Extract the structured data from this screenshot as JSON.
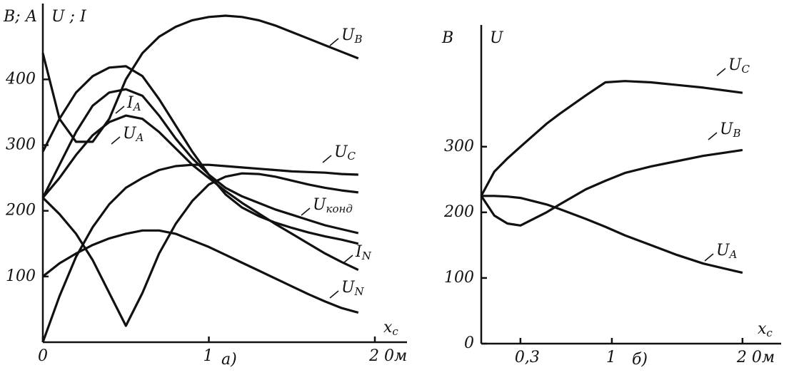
{
  "chart_data": [
    {
      "type": "line",
      "label": "а)",
      "y_label": "В; А",
      "y_label2": "U ; I",
      "x_label": "xc",
      "color": "#111",
      "x": [
        0,
        0.1,
        0.2,
        0.3,
        0.4,
        0.5,
        0.6,
        0.7,
        0.8,
        0.9,
        1.0,
        1.1,
        1.2,
        1.3,
        1.4,
        1.5,
        1.6,
        1.7,
        1.8,
        1.9
      ],
      "xlim": [
        0,
        2
      ],
      "ylim": [
        0,
        510
      ],
      "xticks": [
        0,
        1,
        {
          "value": 2,
          "label": "2 0м"
        }
      ],
      "yticks": [
        100,
        200,
        300,
        400
      ],
      "series": [
        {
          "name": "UB",
          "values": [
            440,
            340,
            305,
            305,
            340,
            400,
            440,
            465,
            480,
            490,
            495,
            497,
            495,
            490,
            482,
            472,
            462,
            452,
            442,
            432
          ]
        },
        {
          "name": "IA",
          "values": [
            220,
            270,
            320,
            360,
            380,
            385,
            375,
            345,
            310,
            280,
            255,
            235,
            222,
            212,
            202,
            194,
            186,
            178,
            172,
            166
          ]
        },
        {
          "name": "UA",
          "values": [
            220,
            250,
            285,
            315,
            335,
            345,
            340,
            320,
            295,
            270,
            250,
            230,
            212,
            196,
            180,
            165,
            150,
            135,
            122,
            110
          ]
        },
        {
          "name": "UC",
          "values": [
            0,
            70,
            130,
            175,
            210,
            235,
            250,
            262,
            268,
            270,
            270,
            268,
            266,
            264,
            262,
            260,
            259,
            258,
            256,
            255
          ]
        },
        {
          "name": "Uконд",
          "values": [
            220,
            195,
            165,
            125,
            75,
            25,
            75,
            135,
            180,
            215,
            240,
            252,
            257,
            256,
            252,
            246,
            240,
            235,
            231,
            228
          ]
        },
        {
          "name": "IN",
          "values": [
            290,
            340,
            380,
            405,
            418,
            420,
            405,
            370,
            330,
            290,
            255,
            225,
            205,
            192,
            182,
            174,
            167,
            161,
            156,
            150
          ]
        },
        {
          "name": "UN",
          "values": [
            100,
            120,
            135,
            148,
            158,
            165,
            170,
            170,
            165,
            155,
            145,
            133,
            121,
            109,
            97,
            85,
            73,
            62,
            52,
            45
          ]
        }
      ]
    },
    {
      "type": "line",
      "label": "б)",
      "y_label": "В",
      "y_label2": "U",
      "x_label": "xc",
      "color": "#111",
      "x": [
        0,
        0.1,
        0.2,
        0.3,
        0.5,
        0.6,
        0.8,
        0.95,
        1.1,
        1.3,
        1.5,
        1.7,
        2.0
      ],
      "xlim": [
        0,
        2.05
      ],
      "ylim": [
        0,
        480
      ],
      "xticks": [
        {
          "value": 0.3,
          "label": "0,3"
        },
        1,
        {
          "value": 2,
          "label": "2 0м"
        }
      ],
      "yticks": [
        0,
        100,
        200,
        300
      ],
      "series": [
        {
          "name": "UC",
          "values": [
            225,
            262,
            282,
            300,
            335,
            350,
            378,
            398,
            400,
            398,
            394,
            390,
            382
          ]
        },
        {
          "name": "UB",
          "values": [
            225,
            195,
            183,
            180,
            200,
            212,
            235,
            248,
            260,
            270,
            278,
            286,
            295
          ]
        },
        {
          "name": "UA",
          "values": [
            225,
            225,
            224,
            222,
            212,
            205,
            190,
            178,
            165,
            150,
            135,
            122,
            108
          ]
        }
      ]
    }
  ]
}
